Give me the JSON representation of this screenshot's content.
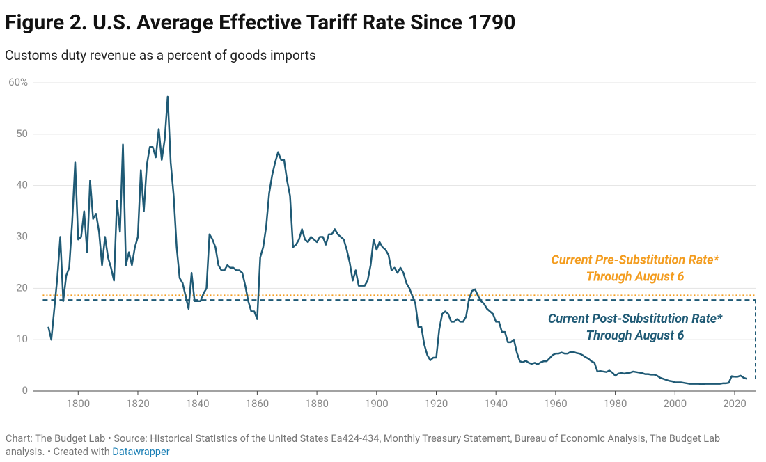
{
  "chart_data": {
    "type": "line",
    "title": "Figure 2. U.S. Average Effective Tariff Rate Since 1790",
    "subtitle": "Customs duty revenue as a percent of goods imports",
    "notes": [
      "Chart: The Budget Lab • Source: Historical Statistics of the United States Ea424-434, Monthly Treasury Statement, Bureau of Economic Analysis, The Budget Lab analysis. • Created with ",
      "Datawrapper"
    ],
    "xlim": [
      1785,
      2027
    ],
    "xticks": [
      1800,
      1820,
      1840,
      1860,
      1880,
      1900,
      1920,
      1940,
      1960,
      1980,
      2000,
      2020
    ],
    "ylim": [
      0,
      60
    ],
    "yticks": [
      0,
      10,
      20,
      30,
      40,
      50,
      {
        "value": 60,
        "label": "60%"
      }
    ],
    "grid": true,
    "reference_lines": [
      {
        "label": [
          "Current Pre-Substitution Rate*",
          "Through August 6"
        ],
        "value": 18.6,
        "color": "#f39c1e",
        "style": "dotted"
      },
      {
        "label": [
          "Current Post-Substitution Rate*",
          "Through August 6"
        ],
        "value": 17.7,
        "color": "#1f5a75",
        "style": "dashed"
      }
    ],
    "x": [
      1790,
      1791,
      1792,
      1793,
      1794,
      1795,
      1796,
      1797,
      1798,
      1799,
      1800,
      1801,
      1802,
      1803,
      1804,
      1805,
      1806,
      1807,
      1808,
      1809,
      1810,
      1811,
      1812,
      1813,
      1814,
      1815,
      1816,
      1817,
      1818,
      1819,
      1820,
      1821,
      1822,
      1823,
      1824,
      1825,
      1826,
      1827,
      1828,
      1829,
      1830,
      1831,
      1832,
      1833,
      1834,
      1835,
      1836,
      1837,
      1838,
      1839,
      1840,
      1841,
      1842,
      1843,
      1844,
      1845,
      1846,
      1847,
      1848,
      1849,
      1850,
      1851,
      1852,
      1853,
      1854,
      1855,
      1856,
      1857,
      1858,
      1859,
      1860,
      1861,
      1862,
      1863,
      1864,
      1865,
      1866,
      1867,
      1868,
      1869,
      1870,
      1871,
      1872,
      1873,
      1874,
      1875,
      1876,
      1877,
      1878,
      1879,
      1880,
      1881,
      1882,
      1883,
      1884,
      1885,
      1886,
      1887,
      1888,
      1889,
      1890,
      1891,
      1892,
      1893,
      1894,
      1895,
      1896,
      1897,
      1898,
      1899,
      1900,
      1901,
      1902,
      1903,
      1904,
      1905,
      1906,
      1907,
      1908,
      1909,
      1910,
      1911,
      1912,
      1913,
      1914,
      1915,
      1916,
      1917,
      1918,
      1919,
      1920,
      1921,
      1922,
      1923,
      1924,
      1925,
      1926,
      1927,
      1928,
      1929,
      1930,
      1931,
      1932,
      1933,
      1934,
      1935,
      1936,
      1937,
      1938,
      1939,
      1940,
      1941,
      1942,
      1943,
      1944,
      1945,
      1946,
      1947,
      1948,
      1949,
      1950,
      1951,
      1952,
      1953,
      1954,
      1955,
      1956,
      1957,
      1958,
      1959,
      1960,
      1961,
      1962,
      1963,
      1964,
      1965,
      1966,
      1967,
      1968,
      1969,
      1970,
      1971,
      1972,
      1973,
      1974,
      1975,
      1976,
      1977,
      1978,
      1979,
      1980,
      1981,
      1982,
      1983,
      1984,
      1985,
      1986,
      1987,
      1988,
      1989,
      1990,
      1991,
      1992,
      1993,
      1994,
      1995,
      1996,
      1997,
      1998,
      1999,
      2000,
      2001,
      2002,
      2003,
      2004,
      2005,
      2006,
      2007,
      2008,
      2009,
      2010,
      2011,
      2012,
      2013,
      2014,
      2015,
      2016,
      2017,
      2018,
      2019,
      2020,
      2021,
      2022,
      2023,
      2024
    ],
    "series": [
      {
        "name": "Average effective tariff rate",
        "color": "#1f5a75",
        "values": [
          12.5,
          10,
          16,
          22,
          30,
          17.5,
          22.5,
          24,
          33,
          44.5,
          29.5,
          30,
          35,
          27,
          41,
          33.5,
          34.5,
          31,
          24.5,
          30,
          26,
          24,
          21.5,
          37,
          31,
          48,
          24.5,
          27,
          24.5,
          28,
          30,
          43,
          35,
          44,
          47.5,
          47.5,
          45.5,
          51,
          45,
          49,
          57.3,
          44.5,
          38,
          28,
          22,
          21,
          18.5,
          16,
          23,
          17.5,
          17.5,
          17.5,
          19,
          20,
          30.5,
          29.5,
          28,
          24.5,
          23.5,
          23.5,
          24.5,
          24,
          24,
          23.5,
          23.5,
          23,
          20.5,
          17.5,
          15.5,
          15.5,
          14,
          26,
          28,
          32,
          38.5,
          42,
          44.5,
          46.5,
          45,
          45,
          41,
          38,
          28,
          28.5,
          29.5,
          31.5,
          29.5,
          29,
          30,
          29.5,
          29,
          30,
          30,
          28.5,
          30.5,
          30.5,
          31.5,
          30.5,
          30,
          29.5,
          27.5,
          25,
          21.5,
          23.5,
          20.5,
          20.5,
          20.5,
          21.5,
          24.5,
          29.5,
          27.5,
          29,
          28,
          27.5,
          26.5,
          23.5,
          24,
          23,
          24,
          23,
          21,
          20,
          18.5,
          17,
          12.5,
          12.5,
          9,
          7,
          6,
          6.5,
          6.5,
          12,
          15,
          15.5,
          15,
          13.5,
          13.5,
          14,
          13.5,
          13.5,
          14.5,
          18,
          19.5,
          19.8,
          18.5,
          17.5,
          17,
          16,
          15.5,
          15,
          13.5,
          13.5,
          11.5,
          11.5,
          9.5,
          9.5,
          10,
          7.5,
          5.8,
          5.6,
          5.9,
          5.5,
          5.3,
          5.5,
          5.2,
          5.6,
          5.8,
          5.8,
          6.4,
          7,
          7.3,
          7.3,
          7.5,
          7.3,
          7.3,
          7.6,
          7.6,
          7.4,
          7.3,
          7,
          6.6,
          6.3,
          5.8,
          5.5,
          3.8,
          3.9,
          3.8,
          3.7,
          4,
          3.6,
          3,
          3.4,
          3.5,
          3.4,
          3.5,
          3.6,
          3.8,
          3.7,
          3.6,
          3.5,
          3.3,
          3.3,
          3.2,
          3.2,
          3,
          2.6,
          2.4,
          2.2,
          2,
          1.9,
          1.7,
          1.7,
          1.7,
          1.6,
          1.5,
          1.4,
          1.4,
          1.4,
          1.4,
          1.3,
          1.4,
          1.4,
          1.4,
          1.4,
          1.4,
          1.4,
          1.5,
          1.5,
          1.6,
          2.9,
          2.8,
          2.8,
          3,
          2.6,
          2.4
        ]
      }
    ]
  }
}
